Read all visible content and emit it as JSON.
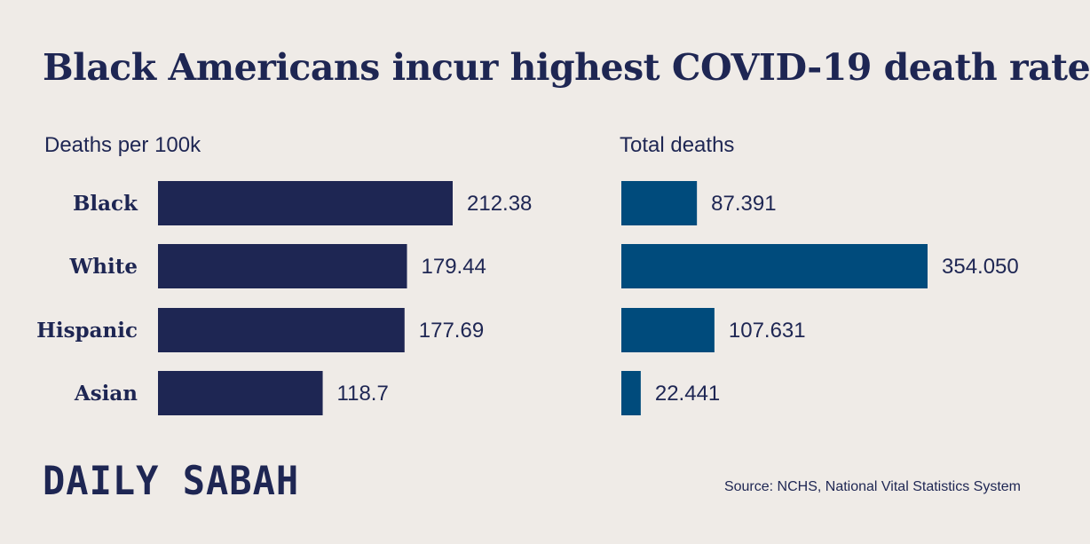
{
  "title": "Black Americans incur highest COVID-19 death rate",
  "logo_text": "DAILY SABAH",
  "source": "Source: NCHS, National Vital Statistics System",
  "colors": {
    "background": "#efebe7",
    "text": "#1e2653",
    "rate_bar": "#1e2653",
    "total_bar": "#004b7c"
  },
  "chart_data": [
    {
      "type": "bar",
      "orientation": "horizontal",
      "title": "Deaths per 100k",
      "categories": [
        "Black",
        "White",
        "Hispanic",
        "Asian"
      ],
      "values": [
        212.38,
        179.44,
        177.69,
        118.7
      ],
      "value_labels": [
        "212.38",
        "179.44",
        "177.69",
        "118.7"
      ],
      "color": "#1e2653",
      "xlim": [
        0,
        212.38
      ]
    },
    {
      "type": "bar",
      "orientation": "horizontal",
      "title": "Total deaths",
      "categories": [
        "Black",
        "White",
        "Hispanic",
        "Asian"
      ],
      "values": [
        87391,
        354050,
        107631,
        22441
      ],
      "value_labels": [
        "87.391",
        "354.050",
        "107.631",
        "22.441"
      ],
      "color": "#004b7c",
      "xlim": [
        0,
        354050
      ]
    }
  ]
}
